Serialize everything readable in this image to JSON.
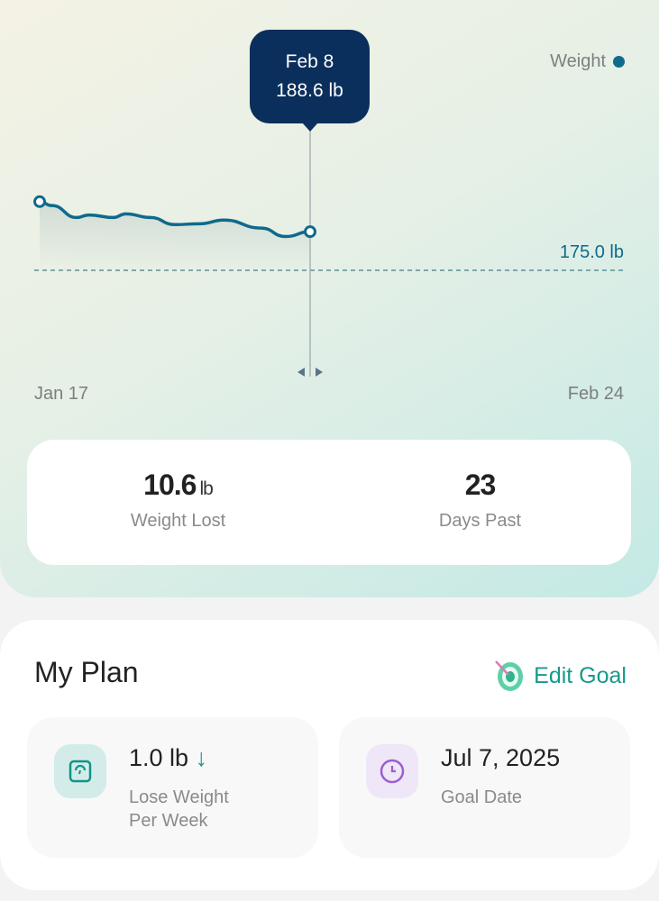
{
  "chart_data": {
    "type": "area",
    "series": [
      {
        "name": "Weight",
        "x": [
          "Jan 17",
          "Jan 18",
          "Jan 20",
          "Jan 21",
          "Jan 23",
          "Jan 24",
          "Jan 26",
          "Jan 28",
          "Jan 30",
          "Feb 1",
          "Feb 4",
          "Feb 6",
          "Feb 8"
        ],
        "values": [
          199.2,
          197.8,
          193.6,
          194.5,
          193.6,
          194.9,
          193.6,
          191.1,
          191.4,
          192.7,
          189.9,
          186.9,
          188.6
        ]
      }
    ],
    "x_tick_labels": [
      "Jan 17",
      "Feb 24"
    ],
    "xlim": [
      "Jan 17",
      "Feb 24"
    ],
    "goal_line": {
      "value": 175.0,
      "label": "175.0 lb"
    },
    "legend": {
      "label": "Weight",
      "placement": "top-right"
    },
    "tooltip": {
      "date": "Feb 8",
      "value": "188.6 lb"
    },
    "line_color": "#0f6a8c"
  },
  "stats": {
    "weight_lost": {
      "value": "10.6",
      "unit": "lb",
      "label": "Weight Lost"
    },
    "days_past": {
      "value": "23",
      "label": "Days Past"
    }
  },
  "plan": {
    "title": "My Plan",
    "edit_label": "Edit Goal",
    "rate": {
      "value": "1.0 lb",
      "label1": "Lose Weight",
      "label2": "Per Week",
      "icon": "scale-icon"
    },
    "goal_date": {
      "value": "Jul 7, 2025",
      "label": "Goal Date",
      "icon": "clock-icon"
    }
  },
  "colors": {
    "accent": "#17998a",
    "tooltip": "#0a2f5c"
  }
}
